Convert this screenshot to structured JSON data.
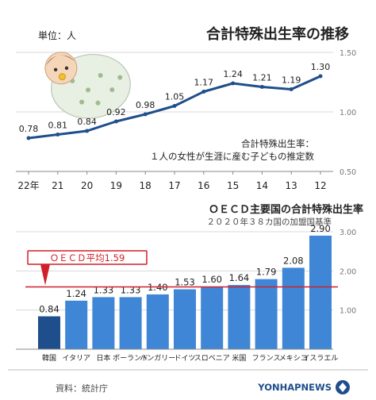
{
  "header": {
    "unit_label": "単位：人",
    "title": "合計特殊出生率の推移",
    "definition_line1": "合計特殊出生率：",
    "definition_line2": "１人の女性が生涯に産む子どもの推定数"
  },
  "subheader": {
    "title": "ＯＥＣＤ主要国の合計特殊出生率",
    "note": "２０２０年３８カ国の加盟国基準"
  },
  "footer": {
    "source": "資料：統計庁",
    "credit": "YONHAPNEWS"
  },
  "colors": {
    "line": "#1f4e8c",
    "bar": "#3f87d6",
    "highlight_bar": "#1f4e8c",
    "avg_line": "#d0202a",
    "grid": "#d9d9d9"
  },
  "icons": {
    "baby": "baby-illustration",
    "logo": "yonhap-logo-icon"
  },
  "chart_data": [
    {
      "type": "line",
      "categories": [
        "12",
        "13",
        "14",
        "15",
        "16",
        "17",
        "18",
        "19",
        "20",
        "21",
        "22年"
      ],
      "values": [
        1.3,
        1.19,
        1.21,
        1.24,
        1.17,
        1.05,
        0.98,
        0.92,
        0.84,
        0.81,
        0.78
      ],
      "value_labels": [
        "1.30",
        "1.19",
        "1.21",
        "1.24",
        "1.17",
        "1.05",
        "0.98",
        "0.92",
        "0.84",
        "0.81",
        "0.78"
      ],
      "y_ticks": [
        "1.50",
        "1.00",
        "0.50"
      ],
      "ylim": [
        0.5,
        1.5
      ],
      "grid": true,
      "orientation": "mirrored"
    },
    {
      "type": "bar",
      "categories": [
        "イスラエル",
        "メキシコ",
        "フランス",
        "米国",
        "スロベニア",
        "ドイツ",
        "ハンガリー",
        "ポーランド",
        "日本",
        "イタリア",
        "韓国"
      ],
      "values": [
        2.9,
        2.08,
        1.79,
        1.64,
        1.6,
        1.53,
        1.4,
        1.33,
        1.33,
        1.24,
        0.84
      ],
      "value_labels": [
        "2.90",
        "2.08",
        "1.79",
        "1.64",
        "1.60",
        "1.53",
        "1.40",
        "1.33",
        "1.33",
        "1.24",
        "0.84"
      ],
      "highlight": "韓国",
      "average": 1.59,
      "average_label": "ＯＥＣＤ平均1.59",
      "y_ticks": [
        "3.00",
        "2.00",
        "1.00"
      ],
      "ylim": [
        0,
        3
      ],
      "grid": true,
      "orientation": "mirrored"
    }
  ]
}
